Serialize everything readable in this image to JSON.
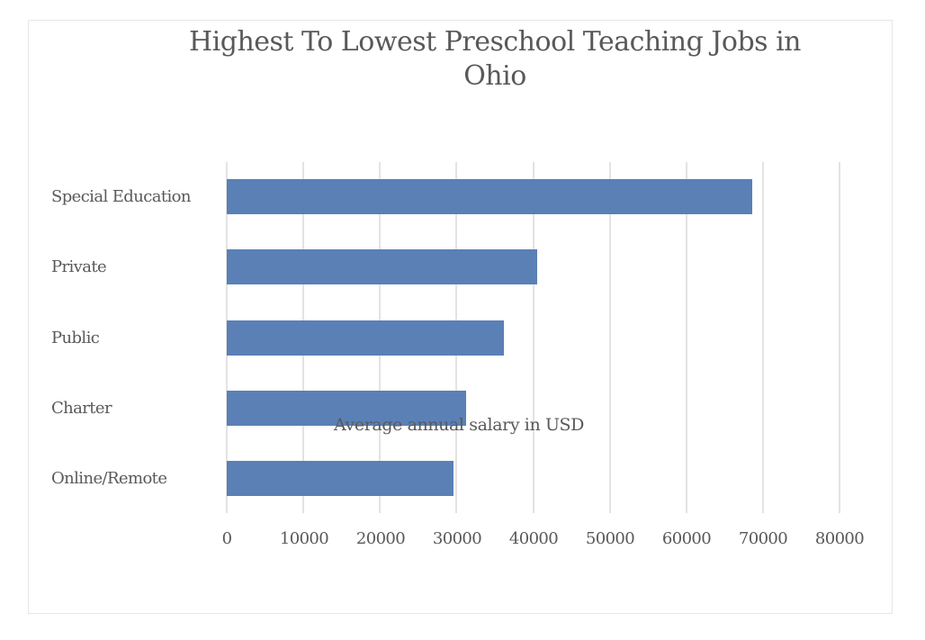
{
  "chart_data": {
    "type": "bar",
    "orientation": "horizontal",
    "title": "Highest To Lowest Preschool Teaching Jobs in Ohio",
    "title_lines": [
      "Highest To Lowest Preschool Teaching Jobs in",
      "Ohio"
    ],
    "xlabel": "Average annual salary in USD",
    "ylabel": "",
    "categories": [
      "Special Education",
      "Private",
      "Public",
      "Charter",
      "Online/Remote"
    ],
    "values": [
      68600,
      40500,
      36200,
      31300,
      29600
    ],
    "xlim": [
      0,
      80000
    ],
    "xticks": [
      "0",
      "10000",
      "20000",
      "30000",
      "40000",
      "50000",
      "60000",
      "70000",
      "80000"
    ],
    "grid": "vertical",
    "legend": "none",
    "bar_color": "#5a80b6",
    "grid_color": "#e3e3e3"
  }
}
